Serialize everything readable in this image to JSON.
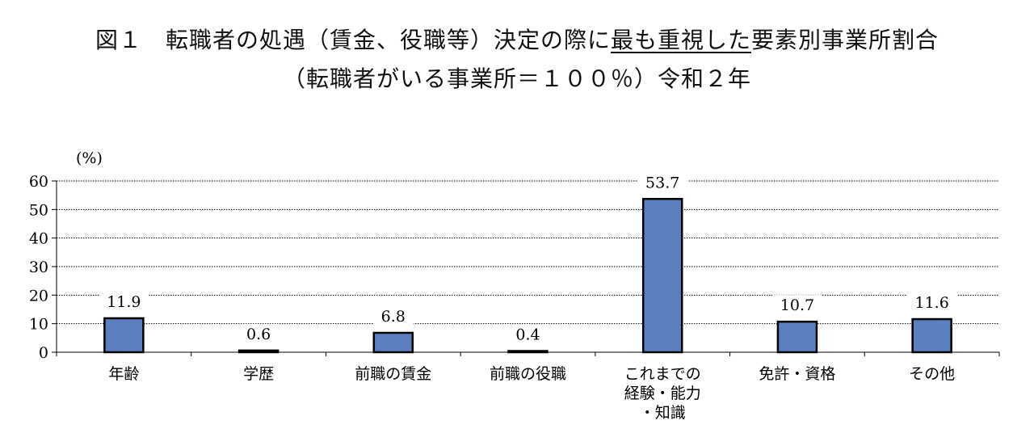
{
  "title": {
    "line1_pre": "図１　転職者の処遇（賃金、役職等）決定の際に",
    "line1_underlined": "最も重視した",
    "line1_post": "要素別事業所割合",
    "line2": "（転職者がいる事業所＝１００％）令和２年"
  },
  "chart_data": {
    "type": "bar",
    "unit_label": "(%)",
    "ylim": [
      0,
      60
    ],
    "yticks": [
      "0",
      "10",
      "20",
      "30",
      "40",
      "50",
      "60"
    ],
    "grid": true,
    "categories": [
      [
        "年齢"
      ],
      [
        "学歴"
      ],
      [
        "前職の賃金"
      ],
      [
        "前職の役職"
      ],
      [
        "これまでの",
        "経験・能力",
        "・知識"
      ],
      [
        "免許・資格"
      ],
      [
        "その他"
      ]
    ],
    "values": [
      11.9,
      0.6,
      6.8,
      0.4,
      53.7,
      10.7,
      11.6
    ],
    "data_labels": [
      "11.9",
      "0.6",
      "6.8",
      "0.4",
      "53.7",
      "10.7",
      "11.6"
    ],
    "colors": {
      "bar_fill": "#5b7fbf",
      "bar_stroke": "#000000",
      "grid": "#000000"
    }
  }
}
